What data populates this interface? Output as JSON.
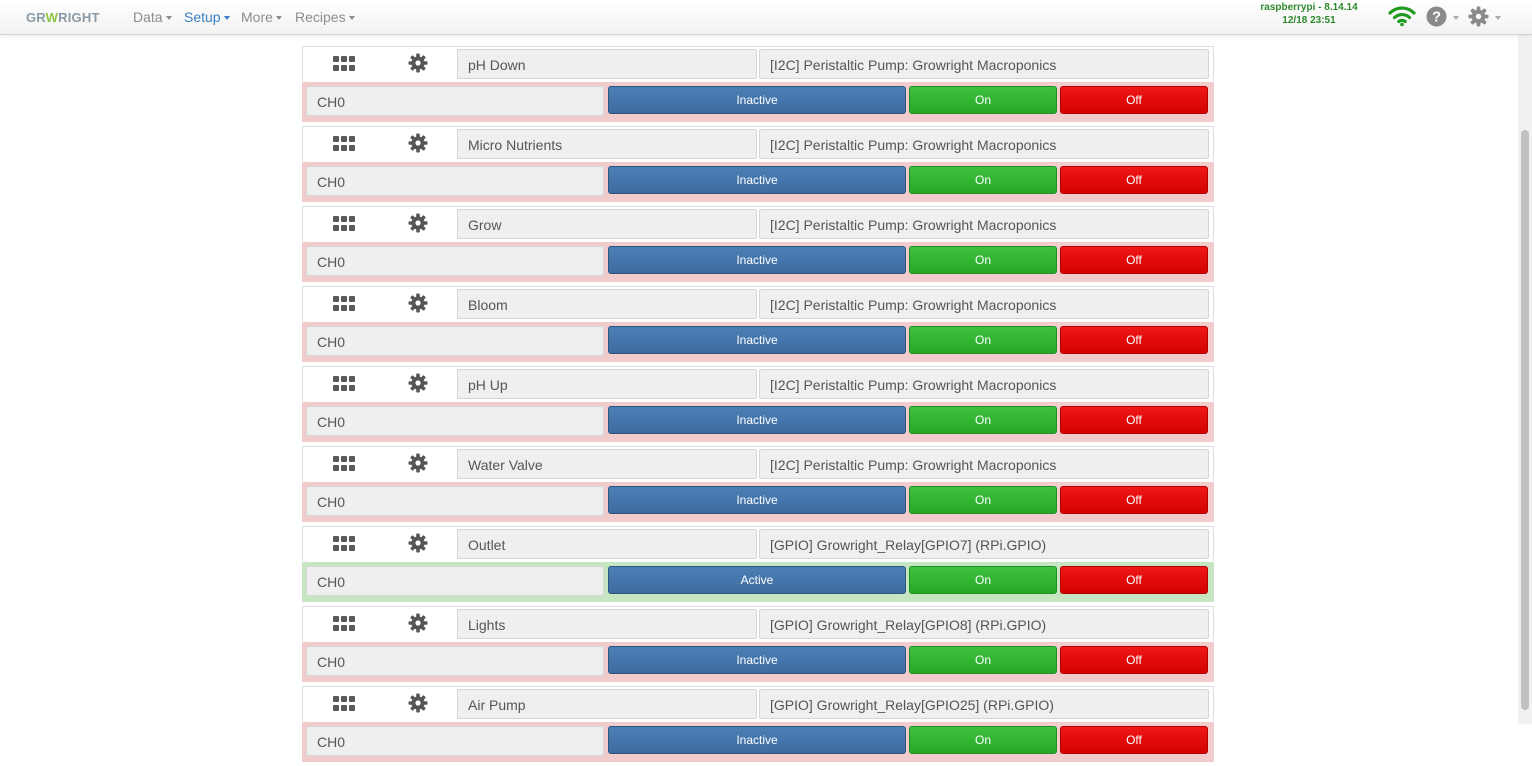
{
  "brand": {
    "part1": "GR",
    "part2": "W",
    "part3": "RIGHT"
  },
  "nav": {
    "menus": [
      {
        "label": "Data",
        "active": false
      },
      {
        "label": "Setup",
        "active": true
      },
      {
        "label": "More",
        "active": false
      },
      {
        "label": "Recipes",
        "active": false
      }
    ]
  },
  "status": {
    "host": "raspberrypi - 8.14.14",
    "datetime": "12/18 23:51"
  },
  "icons": {
    "wifi": "wifi-icon",
    "help": "help-icon",
    "settings": "gear-icon",
    "drag": "grip-icon",
    "output_settings": "cog-icon"
  },
  "colors": {
    "inactive_row": "#f2cccc",
    "active_row": "#c5e6c0",
    "state_button": "#4575aa",
    "on_button": "#33b833",
    "off_button": "#e00000",
    "host_text": "#2d8a2d",
    "active_menu": "#3a7fc1"
  },
  "outputs": [
    {
      "name": "pH Down",
      "type": "[I2C] Peristaltic Pump: Growright Macroponics",
      "channel": "CH0",
      "state": "Inactive",
      "on_label": "On",
      "off_label": "Off",
      "active": false
    },
    {
      "name": "Micro Nutrients",
      "type": "[I2C] Peristaltic Pump: Growright Macroponics",
      "channel": "CH0",
      "state": "Inactive",
      "on_label": "On",
      "off_label": "Off",
      "active": false
    },
    {
      "name": "Grow",
      "type": "[I2C] Peristaltic Pump: Growright Macroponics",
      "channel": "CH0",
      "state": "Inactive",
      "on_label": "On",
      "off_label": "Off",
      "active": false
    },
    {
      "name": "Bloom",
      "type": "[I2C] Peristaltic Pump: Growright Macroponics",
      "channel": "CH0",
      "state": "Inactive",
      "on_label": "On",
      "off_label": "Off",
      "active": false
    },
    {
      "name": "pH Up",
      "type": "[I2C] Peristaltic Pump: Growright Macroponics",
      "channel": "CH0",
      "state": "Inactive",
      "on_label": "On",
      "off_label": "Off",
      "active": false
    },
    {
      "name": "Water Valve",
      "type": "[I2C] Peristaltic Pump: Growright Macroponics",
      "channel": "CH0",
      "state": "Inactive",
      "on_label": "On",
      "off_label": "Off",
      "active": false
    },
    {
      "name": "Outlet",
      "type": "[GPIO] Growright_Relay[GPIO7] (RPi.GPIO)",
      "channel": "CH0",
      "state": "Active",
      "on_label": "On",
      "off_label": "Off",
      "active": true
    },
    {
      "name": "Lights",
      "type": "[GPIO] Growright_Relay[GPIO8] (RPi.GPIO)",
      "channel": "CH0",
      "state": "Inactive",
      "on_label": "On",
      "off_label": "Off",
      "active": false
    },
    {
      "name": "Air Pump",
      "type": "[GPIO] Growright_Relay[GPIO25] (RPi.GPIO)",
      "channel": "CH0",
      "state": "Inactive",
      "on_label": "On",
      "off_label": "Off",
      "active": false
    }
  ]
}
